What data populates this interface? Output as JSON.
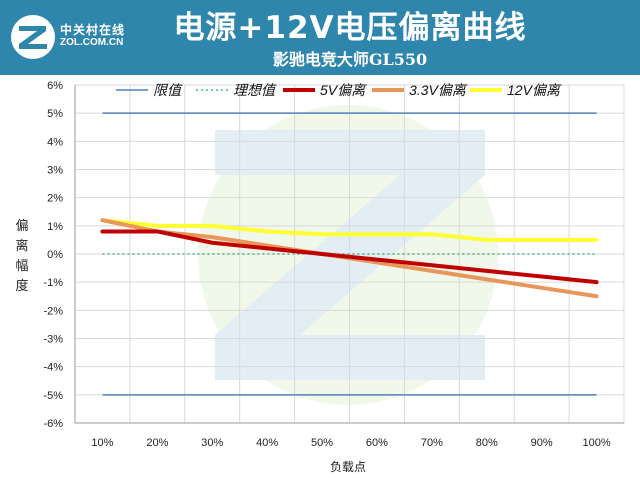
{
  "header": {
    "logo_cn": "中关村在线",
    "logo_en": "ZOL.COM.CN",
    "title": "电源+12V电压偏离曲线",
    "subtitle": "影驰电竞大师GL550"
  },
  "colors": {
    "banner": "#2f86ad",
    "limit": "#4f81bd",
    "ideal": "#2e9e6f",
    "v5": "#c00000",
    "v33": "#e8965a",
    "v12": "#ffff33"
  },
  "chart_data": {
    "type": "line",
    "title": "电源+12V电压偏离曲线",
    "subtitle": "影驰电竞大师GL550",
    "xlabel": "负载点",
    "ylabel": "偏离幅度",
    "categories": [
      "10%",
      "20%",
      "30%",
      "40%",
      "50%",
      "60%",
      "70%",
      "80%",
      "90%",
      "100%"
    ],
    "y_ticks": [
      "-6%",
      "-5%",
      "-4%",
      "-3%",
      "-2%",
      "-1%",
      "0%",
      "1%",
      "2%",
      "3%",
      "4%",
      "5%",
      "6%"
    ],
    "ylim": [
      -6,
      6
    ],
    "grid": true,
    "legend_position": "top",
    "series": [
      {
        "name": "限值",
        "style": "solid-thin",
        "color": "#4f81bd",
        "values": [
          5,
          5,
          5,
          5,
          5,
          5,
          5,
          5,
          5,
          5
        ],
        "values_lower": [
          -5,
          -5,
          -5,
          -5,
          -5,
          -5,
          -5,
          -5,
          -5,
          -5
        ]
      },
      {
        "name": "理想值",
        "style": "dotted",
        "color": "#2e9e6f",
        "values": [
          0,
          0,
          0,
          0,
          0,
          0,
          0,
          0,
          0,
          0
        ]
      },
      {
        "name": "5V偏离",
        "style": "thick",
        "color": "#c00000",
        "values": [
          0.8,
          0.8,
          0.4,
          0.2,
          0.0,
          -0.2,
          -0.4,
          -0.6,
          -0.8,
          -1.0
        ]
      },
      {
        "name": "3.3V偏离",
        "style": "thick",
        "color": "#e8965a",
        "values": [
          1.2,
          0.8,
          0.6,
          0.3,
          0.0,
          -0.3,
          -0.6,
          -0.9,
          -1.2,
          -1.5
        ]
      },
      {
        "name": "12V偏离",
        "style": "thick",
        "color": "#ffff33",
        "values": [
          1.2,
          1.0,
          1.0,
          0.8,
          0.7,
          0.7,
          0.7,
          0.5,
          0.5,
          0.5
        ]
      }
    ]
  }
}
